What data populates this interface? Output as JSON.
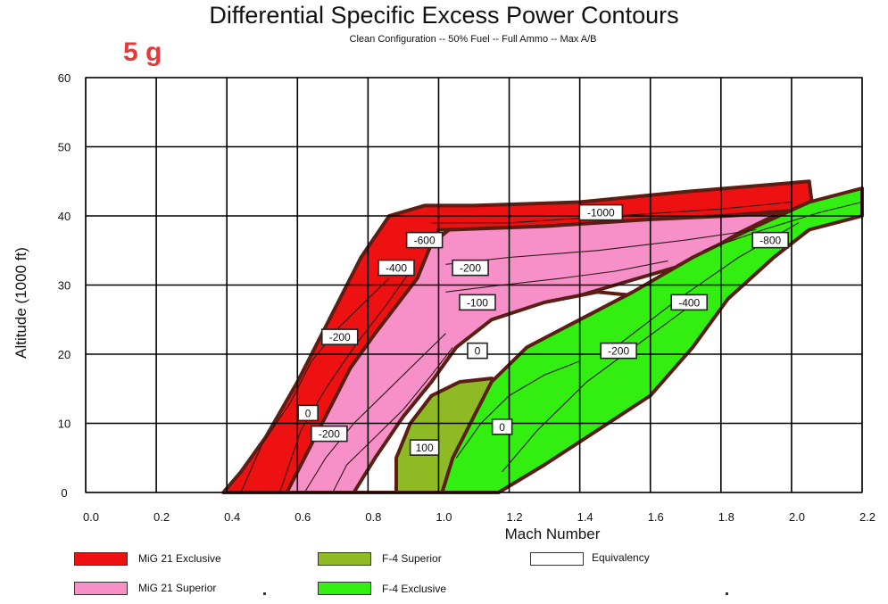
{
  "chart_data": {
    "type": "area",
    "title": "Differential Specific Excess Power Contours",
    "subtitle": "Clean Configuration -- 50% Fuel -- Full Ammo -- Max A/B",
    "g_label": "5 g",
    "xlabel": "Mach Number",
    "ylabel": "Altitude (1000 ft)",
    "xlim": [
      0.0,
      2.2
    ],
    "ylim": [
      0,
      60
    ],
    "x_ticks": [
      "0.0",
      "0.2",
      "0.4",
      "0.6",
      "0.8",
      "1.0",
      "1.2",
      "1.4",
      "1.6",
      "1.8",
      "2.0",
      "2.2"
    ],
    "y_ticks": [
      "0",
      "10",
      "20",
      "30",
      "40",
      "50",
      "60"
    ],
    "grid": true,
    "colors": {
      "mig21_exclusive": "#ee1111",
      "mig21_superior": "#f78fc8",
      "f4_superior": "#8ebb23",
      "f4_exclusive": "#33ee11",
      "equivalency": "#ffffff",
      "boundary": "#5a1e14",
      "contour": "#2b1a14",
      "g_label": "#e8393a"
    },
    "regions": [
      {
        "name": "MiG 21 Exclusive",
        "points": [
          [
            0.39,
            0
          ],
          [
            0.44,
            3
          ],
          [
            0.51,
            8
          ],
          [
            0.6,
            16
          ],
          [
            0.69,
            25
          ],
          [
            0.78,
            34
          ],
          [
            0.86,
            40
          ],
          [
            0.96,
            41.5
          ],
          [
            1.1,
            41.5
          ],
          [
            1.4,
            42
          ],
          [
            1.7,
            43.5
          ],
          [
            2.05,
            45
          ],
          [
            2.06,
            41
          ],
          [
            1.8,
            40
          ],
          [
            1.6,
            39.5
          ],
          [
            1.3,
            38
          ],
          [
            1.0,
            38
          ],
          [
            0.97,
            34
          ],
          [
            0.94,
            30
          ],
          [
            0.88,
            22
          ],
          [
            0.8,
            15
          ],
          [
            0.73,
            9
          ],
          [
            0.72,
            0
          ]
        ]
      },
      {
        "name": "MiG 21 Superior",
        "points": [
          [
            0.57,
            0
          ],
          [
            0.62,
            5
          ],
          [
            0.69,
            12
          ],
          [
            0.75,
            18
          ],
          [
            0.82,
            23
          ],
          [
            0.88,
            27
          ],
          [
            0.94,
            31
          ],
          [
            0.98,
            36
          ],
          [
            1.03,
            38
          ],
          [
            1.3,
            38.5
          ],
          [
            1.6,
            39.5
          ],
          [
            1.82,
            40
          ],
          [
            1.97,
            40.5
          ],
          [
            1.85,
            37.5
          ],
          [
            1.7,
            33
          ],
          [
            1.5,
            30
          ],
          [
            1.3,
            27
          ],
          [
            1.14,
            24.5
          ],
          [
            1.06,
            20
          ],
          [
            1.0,
            15
          ],
          [
            0.92,
            9
          ],
          [
            0.86,
            5
          ],
          [
            0.8,
            0
          ]
        ]
      },
      {
        "name": "Equivalency",
        "points": [
          [
            0.76,
            0
          ],
          [
            0.82,
            5
          ],
          [
            0.9,
            11
          ],
          [
            0.98,
            16
          ],
          [
            1.05,
            21
          ],
          [
            1.15,
            25
          ],
          [
            1.3,
            27.5
          ],
          [
            1.45,
            29
          ],
          [
            1.55,
            28.5
          ],
          [
            1.38,
            22
          ],
          [
            1.25,
            17
          ],
          [
            1.18,
            13
          ],
          [
            1.1,
            9
          ],
          [
            1.05,
            5
          ],
          [
            1.0,
            0
          ]
        ]
      },
      {
        "name": "F-4 Superior",
        "points": [
          [
            0.88,
            0
          ],
          [
            0.88,
            5
          ],
          [
            0.92,
            10
          ],
          [
            0.98,
            14
          ],
          [
            1.06,
            16
          ],
          [
            1.15,
            16.5
          ],
          [
            1.18,
            16
          ],
          [
            1.1,
            10
          ],
          [
            1.04,
            5
          ],
          [
            1.02,
            0
          ]
        ]
      },
      {
        "name": "F-4 Exclusive",
        "points": [
          [
            1.01,
            0
          ],
          [
            1.04,
            5
          ],
          [
            1.1,
            11
          ],
          [
            1.15,
            16
          ],
          [
            1.25,
            21
          ],
          [
            1.4,
            25
          ],
          [
            1.55,
            29
          ],
          [
            1.72,
            34
          ],
          [
            1.9,
            38.5
          ],
          [
            2.05,
            42
          ],
          [
            2.2,
            44
          ],
          [
            2.2,
            40
          ],
          [
            2.05,
            38
          ],
          [
            1.95,
            34
          ],
          [
            1.82,
            28
          ],
          [
            1.72,
            21
          ],
          [
            1.6,
            14
          ],
          [
            1.45,
            9
          ],
          [
            1.3,
            4
          ],
          [
            1.17,
            0
          ]
        ]
      }
    ],
    "contours": [
      [
        [
          0.44,
          0
        ],
        [
          0.5,
          7
        ],
        [
          0.58,
          13
        ],
        [
          0.64,
          19
        ],
        [
          0.72,
          24
        ],
        [
          0.8,
          28
        ],
        [
          0.86,
          31
        ]
      ],
      [
        [
          0.55,
          0
        ],
        [
          0.61,
          9
        ],
        [
          0.68,
          15
        ],
        [
          0.76,
          21
        ],
        [
          0.85,
          27
        ],
        [
          0.92,
          32
        ]
      ],
      [
        [
          0.62,
          0
        ],
        [
          0.68,
          5
        ],
        [
          0.76,
          10
        ],
        [
          0.86,
          15
        ],
        [
          0.96,
          20
        ],
        [
          1.02,
          23
        ]
      ],
      [
        [
          0.7,
          0
        ],
        [
          0.74,
          4
        ],
        [
          0.82,
          8
        ],
        [
          0.9,
          12
        ],
        [
          0.98,
          17
        ],
        [
          1.04,
          21
        ]
      ],
      [
        [
          0.98,
          39
        ],
        [
          1.2,
          39
        ],
        [
          1.5,
          40
        ],
        [
          1.8,
          41
        ],
        [
          2.0,
          42
        ]
      ],
      [
        [
          1.02,
          33
        ],
        [
          1.2,
          34
        ],
        [
          1.45,
          35
        ],
        [
          1.7,
          36.5
        ],
        [
          1.9,
          38
        ]
      ],
      [
        [
          1.02,
          29
        ],
        [
          1.18,
          30
        ],
        [
          1.35,
          31
        ],
        [
          1.5,
          32
        ],
        [
          1.65,
          33.5
        ]
      ],
      [
        [
          1.05,
          5
        ],
        [
          1.12,
          10
        ],
        [
          1.2,
          14
        ],
        [
          1.3,
          17
        ],
        [
          1.4,
          19
        ]
      ],
      [
        [
          1.18,
          3
        ],
        [
          1.28,
          9
        ],
        [
          1.42,
          16
        ],
        [
          1.58,
          22
        ],
        [
          1.74,
          28
        ]
      ],
      [
        [
          1.5,
          21
        ],
        [
          1.68,
          28
        ],
        [
          1.85,
          34
        ],
        [
          2.02,
          39
        ]
      ],
      [
        [
          1.75,
          35
        ],
        [
          1.92,
          38
        ],
        [
          2.08,
          40.5
        ],
        [
          2.2,
          42
        ]
      ]
    ],
    "labels": [
      {
        "text": "-1000",
        "x": 1.46,
        "y": 40.5
      },
      {
        "text": "-600",
        "x": 0.96,
        "y": 36.5
      },
      {
        "text": "-400",
        "x": 0.88,
        "y": 32.5
      },
      {
        "text": "-200",
        "x": 1.09,
        "y": 32.5
      },
      {
        "text": "-100",
        "x": 1.11,
        "y": 27.5
      },
      {
        "text": "-200",
        "x": 0.72,
        "y": 22.5
      },
      {
        "text": "0",
        "x": 1.11,
        "y": 20.5
      },
      {
        "text": "0",
        "x": 0.63,
        "y": 11.5
      },
      {
        "text": "-200",
        "x": 0.69,
        "y": 8.5
      },
      {
        "text": "100",
        "x": 0.96,
        "y": 6.5
      },
      {
        "text": "0",
        "x": 1.18,
        "y": 9.5
      },
      {
        "text": "-200",
        "x": 1.51,
        "y": 20.5
      },
      {
        "text": "-400",
        "x": 1.71,
        "y": 27.5
      },
      {
        "text": "-800",
        "x": 1.94,
        "y": 36.5
      }
    ],
    "legend": [
      {
        "label": "MiG 21 Exclusive",
        "color_key": "mig21_exclusive"
      },
      {
        "label": "F-4 Superior",
        "color_key": "f4_superior"
      },
      {
        "label": "Equivalency",
        "color_key": "equivalency"
      },
      {
        "label": "MiG 21 Superior",
        "color_key": "mig21_superior"
      },
      {
        "label": "F-4 Exclusive",
        "color_key": "f4_exclusive"
      }
    ],
    "legend_position": "bottom"
  }
}
